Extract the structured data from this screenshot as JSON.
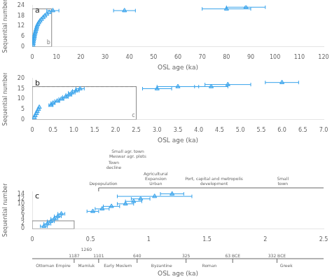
{
  "chart_data": [
    {
      "type": "scatter",
      "title": "a",
      "xlabel": "OSL age (ka)",
      "ylabel": "Sequential number",
      "marker": "triangle",
      "grid": false,
      "x": [
        0.3,
        0.4,
        0.5,
        0.6,
        0.8,
        0.9,
        1.0,
        1.2,
        1.4,
        1.6,
        1.8,
        2.0,
        2.3,
        2.7,
        3.2,
        3.8,
        4.5,
        5.2,
        6.0,
        7.0,
        8.5,
        38.0,
        80.0,
        88.0
      ],
      "values": [
        1,
        2,
        3,
        4,
        5,
        6,
        7,
        8,
        9,
        10,
        11,
        12,
        13,
        14,
        15,
        16,
        17,
        18,
        19,
        20,
        21,
        21,
        22,
        23
      ],
      "xerr_low": [
        null,
        null,
        null,
        null,
        null,
        null,
        null,
        null,
        null,
        null,
        null,
        null,
        null,
        null,
        null,
        null,
        null,
        null,
        null,
        null,
        2.5,
        4.5,
        10.0,
        8.0
      ],
      "xerr_high": [
        null,
        null,
        null,
        null,
        null,
        null,
        null,
        null,
        null,
        null,
        null,
        null,
        null,
        null,
        null,
        null,
        null,
        null,
        null,
        null,
        2.5,
        4.5,
        10.0,
        8.0
      ],
      "xlim": [
        0,
        120
      ],
      "ylim": [
        0,
        24
      ],
      "xticks": [
        0,
        10,
        20,
        30,
        40,
        50,
        60,
        70,
        80,
        90,
        100,
        110,
        120
      ],
      "yticks": [
        0,
        6,
        12,
        18,
        24
      ],
      "box": {
        "x": [
          0,
          8
        ],
        "y": [
          0,
          22
        ],
        "label": "b"
      }
    },
    {
      "type": "scatter",
      "title": "b",
      "xlabel": "OSL age (ka)",
      "ylabel": "Sequential number",
      "marker": "triangle",
      "grid": false,
      "x": [
        0.05,
        0.07,
        0.1,
        0.12,
        0.15,
        0.17,
        0.45,
        0.5,
        0.6,
        0.7,
        0.8,
        0.88,
        0.95,
        1.05,
        1.15,
        3.0,
        3.5,
        4.3,
        4.7,
        6.0
      ],
      "values": [
        1,
        2,
        3,
        4,
        5,
        6,
        7,
        8,
        9,
        10,
        11,
        12,
        13,
        14,
        15,
        15,
        16,
        16,
        17,
        18
      ],
      "xerr_low": [
        0.0,
        0.0,
        0.0,
        0.0,
        0.0,
        0.0,
        0.05,
        0.05,
        0.06,
        0.06,
        0.07,
        0.07,
        0.08,
        0.08,
        0.1,
        0.35,
        0.5,
        0.4,
        0.55,
        0.4
      ],
      "xerr_high": [
        0.0,
        0.0,
        0.0,
        0.0,
        0.0,
        0.0,
        0.05,
        0.05,
        0.06,
        0.06,
        0.07,
        0.07,
        0.08,
        0.08,
        0.1,
        0.35,
        0.5,
        0.4,
        0.55,
        0.4
      ],
      "xlim": [
        0,
        7
      ],
      "ylim": [
        0,
        20
      ],
      "xticks": [
        0,
        0.5,
        {
          "value": 1,
          "label": "1.0"
        },
        1.5,
        {
          "value": 2,
          "label": "2.0"
        },
        2.5,
        {
          "value": 3,
          "label": "3.0"
        },
        3.5,
        {
          "value": 4,
          "label": "4.0"
        },
        4.5,
        {
          "value": 5,
          "label": "5.0"
        },
        5.5,
        {
          "value": 6,
          "label": "6.0"
        },
        6.5,
        {
          "value": 7,
          "label": "7.0"
        }
      ],
      "yticks": [
        0,
        5,
        10,
        15,
        20
      ],
      "box": {
        "x": [
          0,
          2.5
        ],
        "y": [
          0,
          16
        ],
        "label": "c"
      },
      "reference_line": {
        "y": 16,
        "x": [
          0,
          2.5
        ],
        "line_style": "dashed"
      }
    },
    {
      "type": "scatter",
      "title": "c",
      "xlabel": "OSL age (ka)",
      "ylabel": "Sequential number",
      "marker": "triangle",
      "grid": false,
      "x": [
        0.1,
        0.13,
        0.16,
        0.19,
        0.22,
        0.25,
        0.52,
        0.6,
        0.68,
        0.8,
        0.87,
        0.93,
        1.05,
        1.2
      ],
      "values": [
        1,
        2,
        3,
        4,
        5,
        6,
        7,
        8,
        9,
        10,
        11,
        12,
        13,
        14
      ],
      "xerr_low": [
        0.03,
        0.03,
        0.03,
        0.03,
        0.03,
        0.03,
        0.05,
        0.06,
        0.07,
        0.07,
        0.07,
        0.08,
        0.32,
        0.1
      ],
      "xerr_high": [
        0.03,
        0.03,
        0.03,
        0.03,
        0.03,
        0.03,
        0.05,
        0.06,
        0.07,
        0.07,
        0.07,
        0.08,
        0.32,
        0.1
      ],
      "xlim": [
        0,
        2.5
      ],
      "ylim": [
        0,
        15
      ],
      "xticks": [
        0,
        0.5,
        1,
        1.5,
        2,
        2.5
      ],
      "yticks": [
        0,
        2,
        4,
        6,
        8,
        10,
        12,
        14
      ],
      "box": {
        "x": [
          0,
          0.36
        ],
        "y": [
          0,
          3.2
        ]
      },
      "period_bar": {
        "x": [
          0.0,
          2.5
        ],
        "dividers": [
          0.36,
          0.57,
          0.9,
          1.32,
          1.72,
          2.1
        ],
        "periods": [
          {
            "text": "Ottoman Empire",
            "x": 0.18
          },
          {
            "text": "Mamluk",
            "x": 0.465
          },
          {
            "text": "Early Moslem",
            "x": 0.735
          },
          {
            "text": "Byzantine",
            "x": 1.11
          },
          {
            "text": "Roman",
            "x": 1.52
          },
          {
            "text": "Greek",
            "x": 2.18
          }
        ],
        "dates": [
          {
            "text": "1187",
            "x": 0.36
          },
          {
            "text": "1260",
            "x": 0.465
          },
          {
            "text": "1101",
            "x": 0.57
          },
          {
            "text": "640",
            "x": 0.9
          },
          {
            "text": "325",
            "x": 1.32
          },
          {
            "text": "63 BCE",
            "x": 1.72
          },
          {
            "text": "332 BCE",
            "x": 2.1
          }
        ]
      },
      "top_annotations": {
        "line_x": [
          0.57,
          2.5
        ],
        "texts": [
          {
            "text": "Depopulation",
            "x": 0.61
          },
          {
            "text": "Town\ndecline",
            "x": 0.7
          },
          {
            "text": "Small agr. town\nMeswar agr. plots",
            "x": 0.82
          },
          {
            "text": "Agricultural\nExpansion\nUrban",
            "x": 1.06
          },
          {
            "text": "Port, capital and metropolis\ndevelopment",
            "x": 1.56
          },
          {
            "text": "Small\ntown",
            "x": 2.15
          }
        ]
      }
    }
  ]
}
